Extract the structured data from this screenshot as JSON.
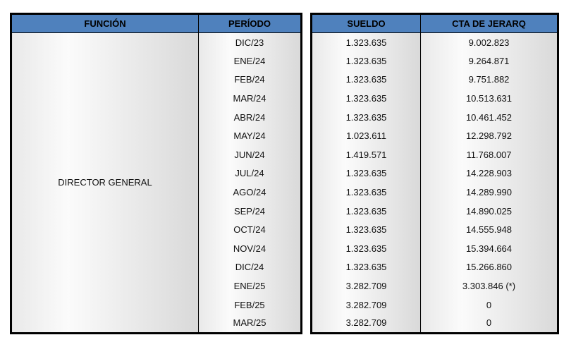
{
  "colors": {
    "header_bg": "#4f81bd",
    "header_text": "#000000",
    "border": "#000000",
    "cell_gradient_light": "#fbfbfb",
    "cell_gradient_dark": "#d9d9d9"
  },
  "left_table": {
    "headers": [
      "FUNCIÓN",
      "PERÍODO"
    ],
    "funcion_value": "DIRECTOR GENERAL",
    "periods": [
      "DIC/23",
      "ENE/24",
      "FEB/24",
      "MAR/24",
      "ABR/24",
      "MAY/24",
      "JUN/24",
      "JUL/24",
      "AGO/24",
      "SEP/24",
      "OCT/24",
      "NOV/24",
      "DIC/24",
      "ENE/25",
      "FEB/25",
      "MAR/25"
    ]
  },
  "right_table": {
    "headers": [
      "SUELDO",
      "CTA DE JERARQ"
    ],
    "rows": [
      {
        "sueldo": "1.323.635",
        "cta": "9.002.823"
      },
      {
        "sueldo": "1.323.635",
        "cta": "9.264.871"
      },
      {
        "sueldo": "1.323.635",
        "cta": "9.751.882"
      },
      {
        "sueldo": "1.323.635",
        "cta": "10.513.631"
      },
      {
        "sueldo": "1.323.635",
        "cta": "10.461.452"
      },
      {
        "sueldo": "1.023.611",
        "cta": "12.298.792"
      },
      {
        "sueldo": "1.419.571",
        "cta": "11.768.007"
      },
      {
        "sueldo": "1.323.635",
        "cta": "14.228.903"
      },
      {
        "sueldo": "1.323.635",
        "cta": "14.289.990"
      },
      {
        "sueldo": "1.323.635",
        "cta": "14.890.025"
      },
      {
        "sueldo": "1.323.635",
        "cta": "14.555.948"
      },
      {
        "sueldo": "1.323.635",
        "cta": "15.394.664"
      },
      {
        "sueldo": "1.323.635",
        "cta": "15.266.860"
      },
      {
        "sueldo": "3.282.709",
        "cta": "3.303.846 (*)"
      },
      {
        "sueldo": "3.282.709",
        "cta": "0"
      },
      {
        "sueldo": "3.282.709",
        "cta": "0"
      }
    ]
  }
}
